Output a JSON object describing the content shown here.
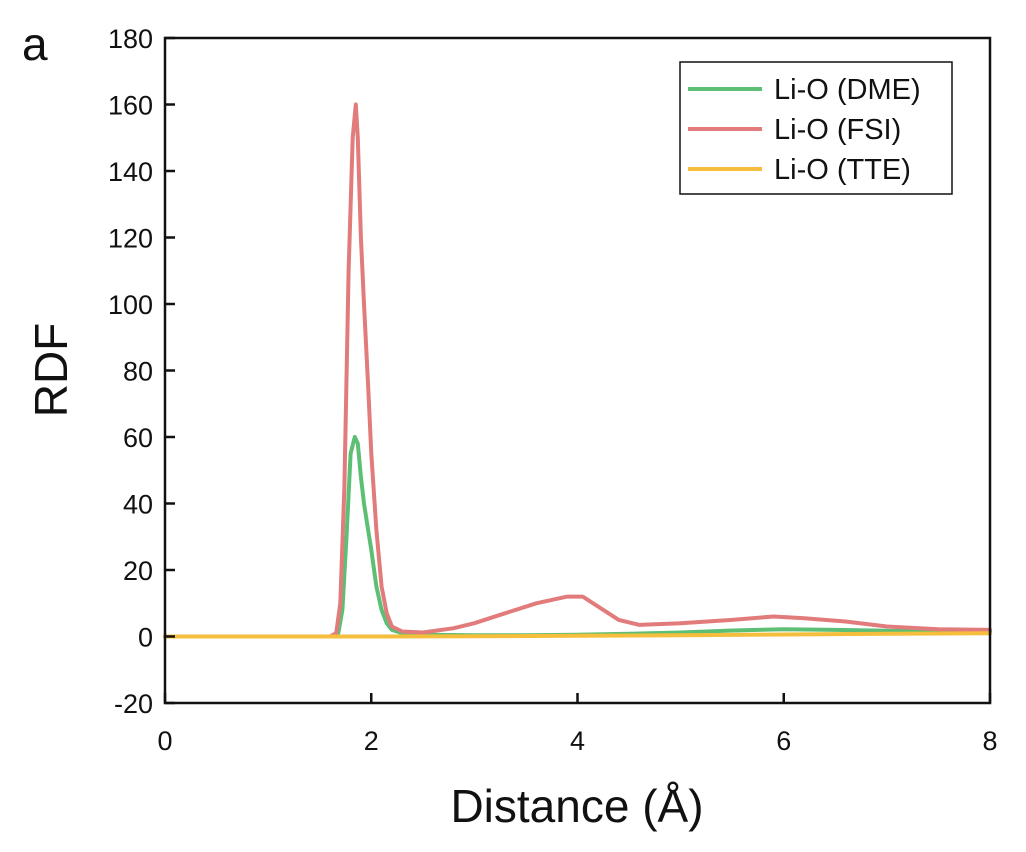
{
  "panel_label": "a",
  "colors": {
    "axis": "#111111",
    "DME": "#5cbf74",
    "FSI": "#e27b7b",
    "TTE": "#f5be3c"
  },
  "chart_data": {
    "type": "line",
    "xlabel": "Distance (Å)",
    "ylabel": "RDF",
    "xlim": [
      0,
      8
    ],
    "ylim": [
      -20,
      180
    ],
    "xticks": [
      0,
      2,
      4,
      6,
      8
    ],
    "yticks": [
      -20,
      0,
      20,
      40,
      60,
      80,
      100,
      120,
      140,
      160,
      180
    ],
    "grid": false,
    "legend_position": "top-right",
    "series": [
      {
        "name": "Li-O (DME)",
        "color": "#5cbf74",
        "points": [
          [
            0,
            0
          ],
          [
            1.6,
            0
          ],
          [
            1.68,
            1
          ],
          [
            1.72,
            8
          ],
          [
            1.76,
            30
          ],
          [
            1.8,
            55
          ],
          [
            1.84,
            60
          ],
          [
            1.87,
            58
          ],
          [
            1.9,
            48
          ],
          [
            1.93,
            40
          ],
          [
            1.96,
            34
          ],
          [
            2.0,
            26
          ],
          [
            2.05,
            15
          ],
          [
            2.1,
            8
          ],
          [
            2.15,
            4
          ],
          [
            2.2,
            2
          ],
          [
            2.3,
            1
          ],
          [
            2.5,
            0.5
          ],
          [
            3.0,
            0.4
          ],
          [
            3.5,
            0.4
          ],
          [
            4.0,
            0.5
          ],
          [
            4.5,
            0.8
          ],
          [
            5.0,
            1.2
          ],
          [
            5.5,
            1.8
          ],
          [
            6.0,
            2.2
          ],
          [
            6.5,
            2.0
          ],
          [
            7.0,
            1.7
          ],
          [
            7.5,
            1.6
          ],
          [
            8.0,
            1.5
          ]
        ]
      },
      {
        "name": "Li-O (FSI)",
        "color": "#e27b7b",
        "points": [
          [
            0,
            0
          ],
          [
            1.6,
            0
          ],
          [
            1.66,
            1
          ],
          [
            1.7,
            10
          ],
          [
            1.74,
            45
          ],
          [
            1.78,
            110
          ],
          [
            1.82,
            150
          ],
          [
            1.85,
            160
          ],
          [
            1.87,
            150
          ],
          [
            1.9,
            120
          ],
          [
            1.93,
            100
          ],
          [
            1.97,
            75
          ],
          [
            2.0,
            55
          ],
          [
            2.05,
            32
          ],
          [
            2.1,
            15
          ],
          [
            2.15,
            7
          ],
          [
            2.2,
            3
          ],
          [
            2.3,
            1.5
          ],
          [
            2.5,
            1.2
          ],
          [
            2.8,
            2.5
          ],
          [
            3.0,
            4
          ],
          [
            3.3,
            7
          ],
          [
            3.6,
            10
          ],
          [
            3.9,
            12
          ],
          [
            4.05,
            12
          ],
          [
            4.2,
            9
          ],
          [
            4.4,
            5
          ],
          [
            4.6,
            3.5
          ],
          [
            5.0,
            4
          ],
          [
            5.5,
            5
          ],
          [
            5.9,
            6
          ],
          [
            6.2,
            5.5
          ],
          [
            6.6,
            4.5
          ],
          [
            7.0,
            3
          ],
          [
            7.5,
            2.2
          ],
          [
            8.0,
            2
          ]
        ]
      },
      {
        "name": "Li-O (TTE)",
        "color": "#f5be3c",
        "points": [
          [
            0,
            0
          ],
          [
            2,
            0
          ],
          [
            3,
            0.1
          ],
          [
            4,
            0.2
          ],
          [
            5,
            0.4
          ],
          [
            6,
            0.6
          ],
          [
            7,
            0.8
          ],
          [
            8,
            1
          ]
        ]
      }
    ]
  }
}
